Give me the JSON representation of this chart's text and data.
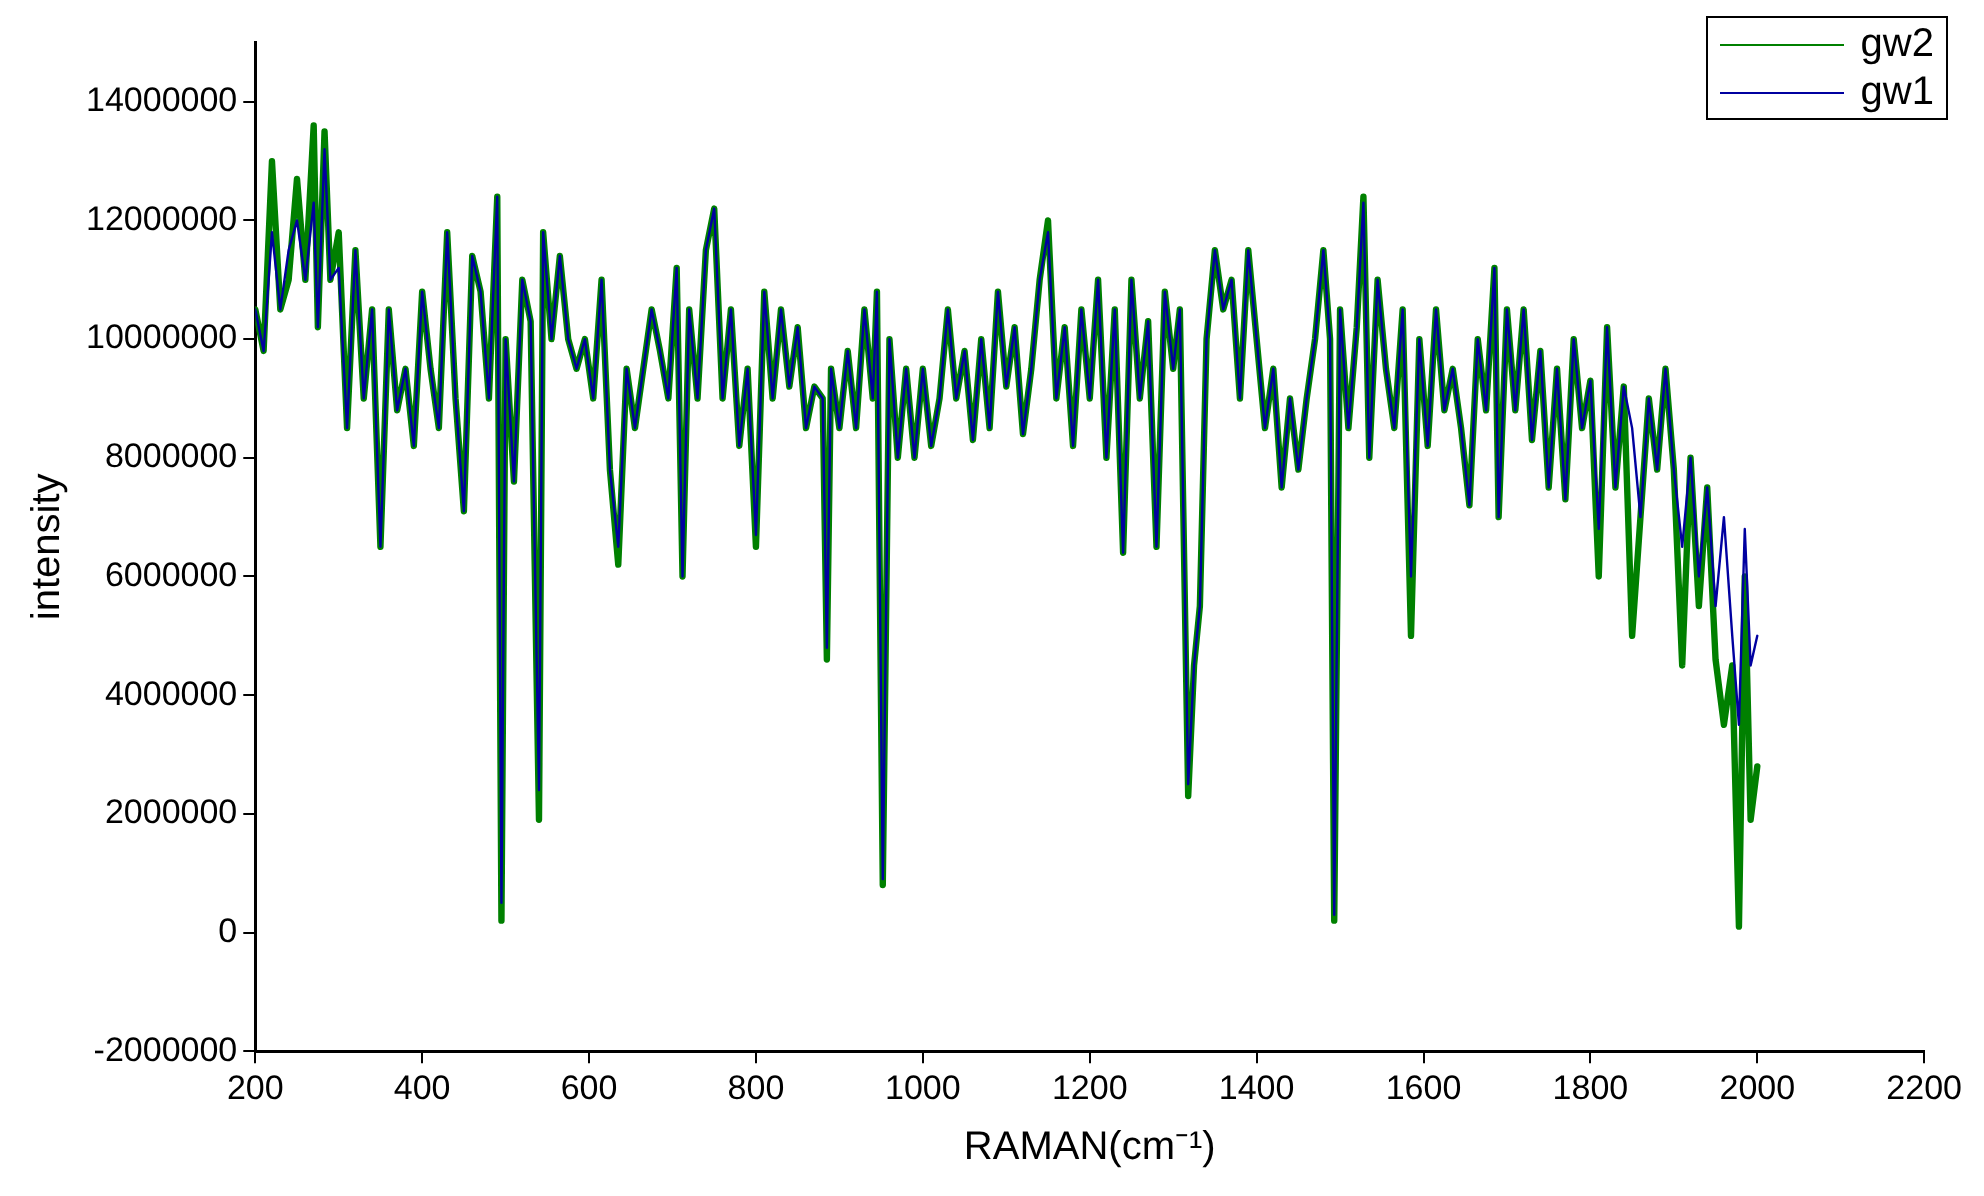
{
  "chart_data": {
    "type": "line",
    "xlabel": "RAMAN(cm⁻¹)",
    "ylabel": "intensity",
    "x": [
      200,
      210,
      220,
      230,
      240,
      250,
      260,
      270,
      275,
      283,
      290,
      300,
      310,
      320,
      330,
      340,
      350,
      360,
      370,
      380,
      390,
      400,
      410,
      420,
      430,
      440,
      450,
      460,
      470,
      480,
      490,
      495,
      500,
      510,
      520,
      530,
      540,
      545,
      555,
      565,
      575,
      585,
      595,
      605,
      615,
      625,
      635,
      645,
      655,
      665,
      675,
      685,
      695,
      705,
      712,
      720,
      730,
      740,
      750,
      760,
      770,
      780,
      790,
      800,
      810,
      820,
      830,
      840,
      850,
      860,
      870,
      880,
      885,
      890,
      900,
      910,
      920,
      930,
      940,
      945,
      952,
      960,
      970,
      980,
      990,
      1000,
      1010,
      1020,
      1030,
      1040,
      1050,
      1060,
      1070,
      1080,
      1090,
      1100,
      1110,
      1120,
      1130,
      1140,
      1150,
      1160,
      1170,
      1180,
      1190,
      1200,
      1210,
      1220,
      1230,
      1240,
      1250,
      1260,
      1270,
      1280,
      1290,
      1300,
      1308,
      1318,
      1325,
      1332,
      1340,
      1350,
      1360,
      1370,
      1380,
      1390,
      1400,
      1410,
      1420,
      1430,
      1440,
      1450,
      1460,
      1470,
      1480,
      1488,
      1493,
      1500,
      1510,
      1520,
      1528,
      1535,
      1545,
      1555,
      1565,
      1575,
      1585,
      1595,
      1605,
      1615,
      1625,
      1635,
      1645,
      1655,
      1665,
      1675,
      1685,
      1690,
      1700,
      1710,
      1720,
      1730,
      1740,
      1750,
      1760,
      1770,
      1780,
      1790,
      1800,
      1810,
      1820,
      1830,
      1840,
      1850,
      1860,
      1870,
      1880,
      1890,
      1900,
      1910,
      1920,
      1930,
      1940,
      1950,
      1960,
      1970,
      1978,
      1985,
      1992,
      2000
    ],
    "series": [
      {
        "name": "gw2",
        "color": "#008000",
        "values": [
          10500000,
          9800000,
          13000000,
          10500000,
          11000000,
          12700000,
          11000000,
          13600000,
          10200000,
          13500000,
          11000000,
          11800000,
          8500000,
          11500000,
          9000000,
          10500000,
          6500000,
          10500000,
          8800000,
          9500000,
          8200000,
          10800000,
          9500000,
          8500000,
          11800000,
          9000000,
          7100000,
          11400000,
          10800000,
          9000000,
          12400000,
          200000,
          10000000,
          7600000,
          11000000,
          10300000,
          1900000,
          11800000,
          10000000,
          11400000,
          10000000,
          9500000,
          10000000,
          9000000,
          11000000,
          7800000,
          6200000,
          9500000,
          8500000,
          9500000,
          10500000,
          9800000,
          9000000,
          11200000,
          6000000,
          10500000,
          9000000,
          11500000,
          12200000,
          9000000,
          10500000,
          8200000,
          9500000,
          6500000,
          10800000,
          9000000,
          10500000,
          9200000,
          10200000,
          8500000,
          9200000,
          9000000,
          4600000,
          9500000,
          8500000,
          9800000,
          8500000,
          10500000,
          9000000,
          10800000,
          800000,
          10000000,
          8000000,
          9500000,
          8000000,
          9500000,
          8200000,
          9000000,
          10500000,
          9000000,
          9800000,
          8300000,
          10000000,
          8500000,
          10800000,
          9200000,
          10200000,
          8400000,
          9500000,
          11000000,
          12000000,
          9000000,
          10200000,
          8200000,
          10500000,
          9000000,
          11000000,
          8000000,
          10500000,
          6400000,
          11000000,
          9000000,
          10300000,
          6500000,
          10800000,
          9500000,
          10500000,
          2300000,
          4500000,
          5500000,
          10000000,
          11500000,
          10500000,
          11000000,
          9000000,
          11500000,
          10000000,
          8500000,
          9500000,
          7500000,
          9000000,
          7800000,
          9000000,
          10000000,
          11500000,
          10000000,
          200000,
          10500000,
          8500000,
          10200000,
          12400000,
          8000000,
          11000000,
          9500000,
          8500000,
          10500000,
          5000000,
          10000000,
          8200000,
          10500000,
          8800000,
          9500000,
          8500000,
          7200000,
          10000000,
          8800000,
          11200000,
          7000000,
          10500000,
          8800000,
          10500000,
          8300000,
          9800000,
          7500000,
          9500000,
          7300000,
          10000000,
          8500000,
          9300000,
          6000000,
          10200000,
          7500000,
          9200000,
          5000000,
          7000000,
          9000000,
          7800000,
          9500000,
          7800000,
          4500000,
          8000000,
          5500000,
          7500000,
          4600000,
          3500000,
          4500000,
          100000,
          6000000,
          1900000,
          2800000
        ]
      },
      {
        "name": "gw1",
        "color": "#0000a0",
        "values": [
          10500000,
          9800000,
          11800000,
          10500000,
          11500000,
          12000000,
          11000000,
          12300000,
          10200000,
          13200000,
          11000000,
          11200000,
          8500000,
          11500000,
          9000000,
          10500000,
          6500000,
          10500000,
          8800000,
          9500000,
          8200000,
          10800000,
          9500000,
          8500000,
          11800000,
          9000000,
          7100000,
          11400000,
          10800000,
          9000000,
          12400000,
          500000,
          10000000,
          7600000,
          11000000,
          10300000,
          2400000,
          11800000,
          10000000,
          11400000,
          10000000,
          9500000,
          10000000,
          9000000,
          11000000,
          7800000,
          6500000,
          9500000,
          8500000,
          9500000,
          10500000,
          9800000,
          9000000,
          11200000,
          6000000,
          10500000,
          9000000,
          11500000,
          12200000,
          9000000,
          10500000,
          8200000,
          9500000,
          6700000,
          10800000,
          9000000,
          10500000,
          9200000,
          10200000,
          8500000,
          9200000,
          9000000,
          4800000,
          9500000,
          8500000,
          9800000,
          8500000,
          10500000,
          9000000,
          10800000,
          900000,
          10000000,
          8000000,
          9500000,
          8000000,
          9500000,
          8200000,
          9000000,
          10500000,
          9000000,
          9800000,
          8300000,
          10000000,
          8500000,
          10800000,
          9200000,
          10200000,
          8400000,
          9500000,
          11000000,
          11800000,
          9000000,
          10200000,
          8200000,
          10500000,
          9000000,
          11000000,
          8000000,
          10500000,
          6400000,
          11000000,
          9000000,
          10300000,
          6500000,
          10800000,
          9500000,
          10500000,
          2500000,
          4500000,
          5500000,
          10000000,
          11500000,
          10500000,
          11000000,
          9000000,
          11500000,
          10000000,
          8500000,
          9500000,
          7500000,
          9000000,
          7800000,
          9000000,
          10000000,
          11500000,
          10000000,
          300000,
          10500000,
          8500000,
          10200000,
          12300000,
          8000000,
          11000000,
          9500000,
          8500000,
          10500000,
          6000000,
          10000000,
          8200000,
          10500000,
          8800000,
          9500000,
          8500000,
          7200000,
          10000000,
          8800000,
          11200000,
          7000000,
          10500000,
          8800000,
          10500000,
          8300000,
          9800000,
          7500000,
          9500000,
          7300000,
          10000000,
          8500000,
          9300000,
          6800000,
          10200000,
          7500000,
          9200000,
          8500000,
          7000000,
          9000000,
          7800000,
          9500000,
          7800000,
          6500000,
          8000000,
          6000000,
          7500000,
          5500000,
          7000000,
          5000000,
          3500000,
          6800000,
          4500000,
          5000000
        ]
      }
    ],
    "xlim": [
      200,
      2200
    ],
    "xticks": [
      200,
      400,
      600,
      800,
      1000,
      1200,
      1400,
      1600,
      1800,
      2000,
      2200
    ],
    "ylim": [
      -2000000,
      15000000
    ],
    "yticks": [
      -2000000,
      0,
      2000000,
      4000000,
      6000000,
      8000000,
      10000000,
      12000000,
      14000000
    ],
    "grid": false,
    "legend": "top right",
    "marker": "none",
    "line_style": "solid"
  }
}
